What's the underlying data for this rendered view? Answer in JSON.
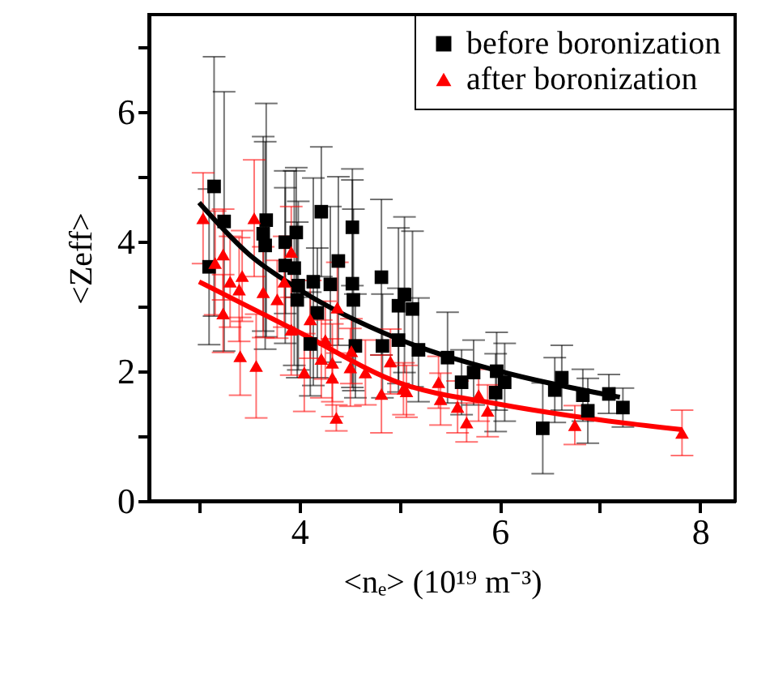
{
  "chart_data": {
    "type": "scatter",
    "xlabel": "<nₑ> (10¹⁹ m⁻³)",
    "ylabel": "<Zeff>",
    "xlim": [
      2.5,
      8.35
    ],
    "ylim": [
      0,
      7.5
    ],
    "xticks": [
      {
        "value": 3,
        "label": null
      },
      4,
      {
        "value": 5,
        "label": null
      },
      6,
      {
        "value": 7,
        "label": null
      },
      8
    ],
    "yticks": [
      0,
      {
        "value": 1,
        "label": null
      },
      2,
      {
        "value": 3,
        "label": null
      },
      4,
      {
        "value": 5,
        "label": null
      },
      6,
      {
        "value": 7,
        "label": null
      }
    ],
    "grid": false,
    "legend": "top right",
    "series": [
      {
        "name": "before boronization",
        "type": "scatter",
        "marker": "square",
        "color": "#000000",
        "x": [
          3.15,
          3.25,
          3.1,
          3.67,
          3.64,
          3.66,
          3.86,
          3.97,
          3.86,
          3.95,
          3.99,
          3.98,
          4.14,
          4.22,
          4.39,
          4.31,
          4.18,
          4.11,
          4.53,
          4.53,
          4.54,
          4.56,
          4.82,
          4.83,
          4.99,
          5.05,
          4.99,
          5.13,
          5.19,
          5.48,
          5.62,
          5.74,
          5.97,
          6.05,
          5.96,
          6.43,
          6.55,
          6.62,
          6.83,
          6.88,
          7.09,
          7.23
        ],
        "values": [
          4.85,
          4.31,
          3.61,
          4.33,
          4.12,
          3.94,
          3.99,
          4.14,
          3.63,
          3.59,
          3.32,
          3.1,
          3.38,
          4.46,
          3.7,
          3.34,
          2.9,
          2.42,
          4.22,
          3.35,
          3.1,
          2.39,
          3.45,
          2.39,
          3.01,
          3.18,
          2.48,
          2.96,
          2.33,
          2.21,
          1.83,
          1.98,
          2.0,
          1.83,
          1.67,
          1.12,
          1.71,
          1.9,
          1.63,
          1.39,
          1.65,
          1.44
        ],
        "errors": [
          2.0,
          2.0,
          1.2,
          1.8,
          1.5,
          1.6,
          1.1,
          1.0,
          1.2,
          1.5,
          1.3,
          1.2,
          1.6,
          1.0,
          1.3,
          1.2,
          1.0,
          0.8,
          0.9,
          1.6,
          1.4,
          0.8,
          1.2,
          0.8,
          1.2,
          1.2,
          0.8,
          1.2,
          0.8,
          0.7,
          0.5,
          0.5,
          0.6,
          0.6,
          0.6,
          0.7,
          0.5,
          0.5,
          0.4,
          0.5,
          0.3,
          0.3
        ]
      },
      {
        "name": "after boronization",
        "type": "scatter",
        "marker": "triangle",
        "color": "#ff0000",
        "x": [
          3.04,
          3.16,
          3.24,
          3.24,
          3.31,
          3.43,
          3.4,
          3.41,
          3.57,
          3.55,
          3.64,
          3.78,
          3.92,
          3.85,
          3.92,
          4.05,
          4.11,
          4.26,
          4.38,
          4.22,
          4.33,
          4.33,
          4.37,
          4.52,
          4.51,
          4.66,
          4.82,
          4.91,
          5.04,
          5.07,
          5.39,
          5.41,
          5.58,
          5.67,
          5.79,
          5.88,
          6.75,
          7.82
        ],
        "values": [
          4.36,
          3.67,
          3.8,
          2.89,
          3.38,
          3.47,
          3.26,
          2.23,
          2.08,
          4.36,
          3.22,
          3.11,
          3.84,
          3.38,
          2.64,
          1.98,
          2.8,
          2.48,
          2.98,
          2.19,
          2.13,
          1.9,
          1.28,
          2.31,
          2.06,
          1.98,
          1.65,
          2.15,
          1.73,
          1.69,
          1.83,
          1.57,
          1.45,
          1.21,
          1.63,
          1.39,
          1.17,
          1.05
        ],
        "errors": [
          0.7,
          0.8,
          0.7,
          0.6,
          0.7,
          0.7,
          0.8,
          0.6,
          0.8,
          0.9,
          0.7,
          0.6,
          0.7,
          0.7,
          0.7,
          0.6,
          0.6,
          0.6,
          0.7,
          0.6,
          0.6,
          0.6,
          0.2,
          0.5,
          0.6,
          0.5,
          0.6,
          0.5,
          0.4,
          0.4,
          0.4,
          0.4,
          0.4,
          0.3,
          0.4,
          0.4,
          0.3,
          0.35
        ]
      },
      {
        "type": "line",
        "marker": "none",
        "color": "#000000",
        "x": [
          3.0,
          3.5,
          4.0,
          5.0,
          6.0,
          7.2
        ],
        "values": [
          4.6,
          3.8,
          3.26,
          2.49,
          2.0,
          1.6
        ]
      },
      {
        "type": "line",
        "marker": "none",
        "color": "#ff0000",
        "x": [
          3.0,
          4.0,
          5.0,
          6.0,
          7.0,
          7.82
        ],
        "values": [
          3.38,
          2.6,
          1.82,
          1.49,
          1.25,
          1.1
        ]
      }
    ]
  }
}
